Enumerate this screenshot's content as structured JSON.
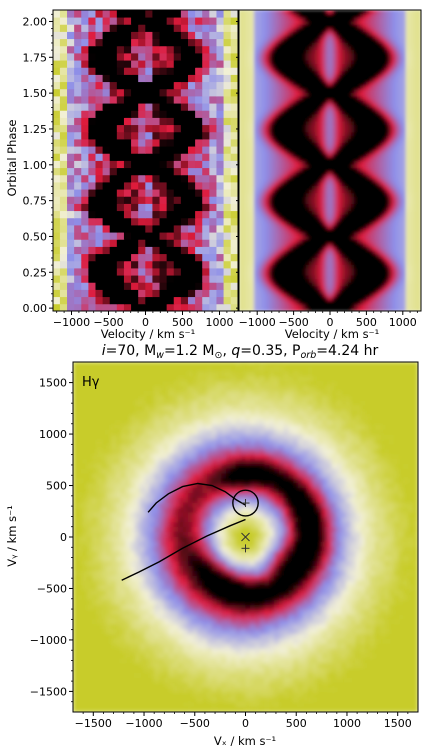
{
  "chart_data": [
    {
      "type": "heatmap",
      "panel": "observed trailed spectra",
      "xlabel": "Velocity / km s⁻¹",
      "ylabel": "Orbital Phase",
      "xlim": [
        -1250,
        1250
      ],
      "ylim": [
        -0.02,
        2.08
      ],
      "xticks": [
        -1000,
        -500,
        0,
        500,
        1000
      ],
      "xtick_labels": [
        "−1000",
        "−500",
        "0",
        "500",
        "1000"
      ],
      "yticks": [
        0.0,
        0.25,
        0.5,
        0.75,
        1.0,
        1.25,
        1.5,
        1.75,
        2.0
      ],
      "ytick_labels": [
        "0.00",
        "0.25",
        "0.50",
        "0.75",
        "1.00",
        "1.25",
        "1.50",
        "1.75",
        "2.00"
      ],
      "colormap": [
        "#c8cc2a",
        "#f2f0d6",
        "#8e8ee8",
        "#e01b3c",
        "#000000"
      ],
      "s_wave_amplitude_kms": 620,
      "emission_peak_phases": [
        0.2,
        0.7,
        1.2,
        1.7
      ]
    },
    {
      "type": "heatmap",
      "panel": "model trailed spectra",
      "xlabel": "Velocity / km s⁻¹",
      "xlim": [
        -1250,
        1250
      ],
      "ylim": [
        -0.02,
        2.08
      ],
      "xticks": [
        -1000,
        -500,
        0,
        500,
        1000
      ],
      "xtick_labels": [
        "−1000",
        "−500",
        "0",
        "500",
        "1000"
      ],
      "colormap": [
        "#c8cc2a",
        "#f2f0d6",
        "#8e8ee8",
        "#e01b3c",
        "#000000"
      ],
      "s_wave_amplitude_kms": 620
    },
    {
      "type": "heatmap",
      "panel": "Doppler tomogram",
      "annotation": "Hγ",
      "xlabel": "Vₓ / km s⁻¹",
      "ylabel": "Vᵧ / km s⁻¹",
      "xlim": [
        -1700,
        1700
      ],
      "ylim": [
        -1700,
        1700
      ],
      "xticks": [
        -1500,
        -1000,
        -500,
        0,
        500,
        1000,
        1500
      ],
      "xtick_labels": [
        "−1500",
        "−1000",
        "−500",
        "0",
        "500",
        "1000",
        "1500"
      ],
      "yticks": [
        1500,
        1000,
        500,
        0,
        -500,
        -1000,
        -1500
      ],
      "ytick_labels": [
        "1500",
        "1000",
        "500",
        "0",
        "−500",
        "−1000",
        "−1500"
      ],
      "colormap": [
        "#c8cc2a",
        "#f2f0d6",
        "#8e8ee8",
        "#e01b3c",
        "#000000"
      ],
      "disc_ring_radius_kms": 620,
      "centre_of_mass_kms": [
        0,
        0
      ],
      "white_dwarf_kms": [
        0,
        -110
      ],
      "secondary_centre_kms": [
        0,
        330
      ],
      "roche_lobe_radius_kms": 125,
      "stream_ballistic": [
        [
          0,
          310
        ],
        [
          -90,
          360
        ],
        [
          -200,
          440
        ],
        [
          -330,
          500
        ],
        [
          -470,
          520
        ],
        [
          -620,
          490
        ],
        [
          -760,
          420
        ],
        [
          -880,
          330
        ],
        [
          -960,
          240
        ]
      ],
      "stream_keplerian": [
        [
          0,
          170
        ],
        [
          -150,
          110
        ],
        [
          -380,
          10
        ],
        [
          -620,
          -110
        ],
        [
          -850,
          -240
        ],
        [
          -1050,
          -340
        ],
        [
          -1220,
          -420
        ]
      ]
    }
  ],
  "suptitle": {
    "parts": [
      "i",
      "=70, M",
      "w",
      "=1.2 M",
      "⊙",
      ", ",
      "q",
      "=0.35, P",
      "orb",
      "=4.24 hr"
    ]
  }
}
